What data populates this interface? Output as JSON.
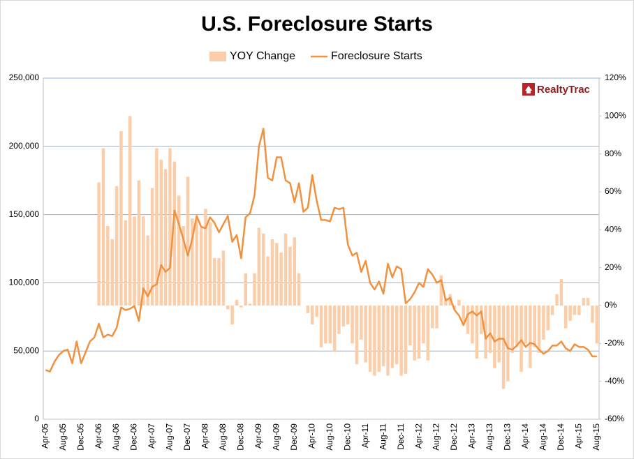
{
  "chart_data": {
    "type": "bar-line",
    "title": "U.S. Foreclosure Starts",
    "logo": "RealtyTrac",
    "categories": [
      "Apr-05",
      null,
      null,
      null,
      "Aug-05",
      null,
      null,
      null,
      "Dec-05",
      null,
      null,
      null,
      "Apr-06",
      null,
      null,
      null,
      "Aug-06",
      null,
      null,
      null,
      "Dec-06",
      null,
      null,
      null,
      "Apr-07",
      null,
      null,
      null,
      "Aug-07",
      null,
      null,
      null,
      "Dec-07",
      null,
      null,
      null,
      "Apr-08",
      null,
      null,
      null,
      "Aug-08",
      null,
      null,
      null,
      "Dec-08",
      null,
      null,
      null,
      "Apr-09",
      null,
      null,
      null,
      "Aug-09",
      null,
      null,
      null,
      "Dec-09",
      null,
      null,
      null,
      "Apr-10",
      null,
      null,
      null,
      "Aug-10",
      null,
      null,
      null,
      "Dec-10",
      null,
      null,
      null,
      "Apr-11",
      null,
      null,
      null,
      "Aug-11",
      null,
      null,
      null,
      "Dec-11",
      null,
      null,
      null,
      "Apr-12",
      null,
      null,
      null,
      "Aug-12",
      null,
      null,
      null,
      "Dec-12",
      null,
      null,
      null,
      "Apr-13",
      null,
      null,
      null,
      "Aug-13",
      null,
      null,
      null,
      "Dec-13",
      null,
      null,
      null,
      "Apr-14",
      null,
      null,
      null,
      "Aug-14",
      null,
      null,
      null,
      "Dec-14",
      null,
      null,
      null,
      "Apr-15",
      null,
      null,
      null,
      "Aug-15"
    ],
    "series": [
      {
        "name": "YOY Change",
        "type": "bar",
        "axis": "y2",
        "color": "#fbcda9",
        "values": [
          null,
          null,
          null,
          null,
          null,
          null,
          null,
          null,
          null,
          null,
          null,
          null,
          65,
          83,
          42,
          35,
          63,
          92,
          45,
          100,
          47,
          66,
          47,
          37,
          62,
          83,
          77,
          72,
          83,
          76,
          58,
          42,
          68,
          46,
          46,
          41,
          51,
          44,
          25,
          25,
          29,
          -2,
          -10,
          3,
          -1,
          17,
          1,
          17,
          41,
          38,
          26,
          35,
          33,
          28,
          38,
          31,
          36,
          17,
          0,
          -4,
          -10,
          -6,
          -22,
          -20,
          -20,
          -24,
          -15,
          -11,
          -10,
          -20,
          -31,
          -18,
          -30,
          -35,
          -37,
          -35,
          -32,
          -37,
          -33,
          -31,
          -37,
          -36,
          -21,
          -29,
          -28,
          -20,
          -29,
          -12,
          -12,
          16,
          4,
          6,
          -2,
          3,
          -10,
          -15,
          -20,
          -28,
          -15,
          -28,
          -25,
          -33,
          -30,
          -44,
          -40,
          -25,
          -22,
          -35,
          -20,
          -33,
          -22,
          -25,
          -18,
          -13,
          -5,
          6,
          14,
          -12,
          -8,
          -5,
          -5,
          4,
          4,
          -9,
          -20
        ]
      },
      {
        "name": "Foreclosure Starts",
        "type": "line",
        "color": "#f0913f",
        "values": [
          36000,
          35000,
          42000,
          47000,
          50000,
          51000,
          41000,
          57000,
          41000,
          49000,
          57000,
          60000,
          70000,
          60000,
          62000,
          61000,
          67000,
          82000,
          80000,
          81000,
          83000,
          72000,
          96000,
          90000,
          97000,
          99000,
          113000,
          108000,
          111000,
          153000,
          143000,
          132000,
          120000,
          132000,
          149000,
          141000,
          140000,
          148000,
          144000,
          137000,
          143000,
          149000,
          130000,
          135000,
          118000,
          148000,
          151000,
          164000,
          200000,
          213000,
          177000,
          175000,
          192000,
          192000,
          175000,
          173000,
          159000,
          173000,
          152000,
          155000,
          179000,
          160000,
          146000,
          146000,
          145000,
          155000,
          154000,
          155000,
          128000,
          120000,
          122000,
          108000,
          116000,
          100000,
          95000,
          101000,
          92000,
          114000,
          104000,
          112000,
          110000,
          85000,
          88000,
          93000,
          100000,
          97000,
          110000,
          106000,
          100000,
          102000,
          87000,
          89000,
          80000,
          76000,
          69000,
          77000,
          79000,
          76000,
          79000,
          59000,
          63000,
          57000,
          59000,
          59000,
          52000,
          51000,
          54000,
          58000,
          53000,
          56000,
          55000,
          51000,
          48000,
          50000,
          54000,
          54000,
          57000,
          52000,
          50000,
          55000,
          53000,
          53000,
          51000,
          46000,
          46000
        ]
      }
    ],
    "ylim": [
      0,
      250000
    ],
    "yticks": [
      0,
      {
        "value": 50000,
        "label": "50,000"
      },
      {
        "value": 100000,
        "label": "100,000"
      },
      {
        "value": 150000,
        "label": "150,000"
      },
      {
        "value": 200000,
        "label": "200,000"
      },
      {
        "value": 250000,
        "label": "250,000"
      }
    ],
    "y2lim": [
      -60,
      120
    ],
    "y2ticks": [
      {
        "value": -60,
        "label": "-60%"
      },
      {
        "value": -40,
        "label": "-40%"
      },
      {
        "value": -20,
        "label": "-20%"
      },
      {
        "value": 0,
        "label": "0%"
      },
      {
        "value": 20,
        "label": "20%"
      },
      {
        "value": 40,
        "label": "40%"
      },
      {
        "value": 60,
        "label": "60%"
      },
      {
        "value": 80,
        "label": "80%"
      },
      {
        "value": 100,
        "label": "100%"
      },
      {
        "value": 120,
        "label": "120%"
      }
    ],
    "grid": true,
    "grid_color": "#8eb4e3",
    "legend": "top"
  }
}
